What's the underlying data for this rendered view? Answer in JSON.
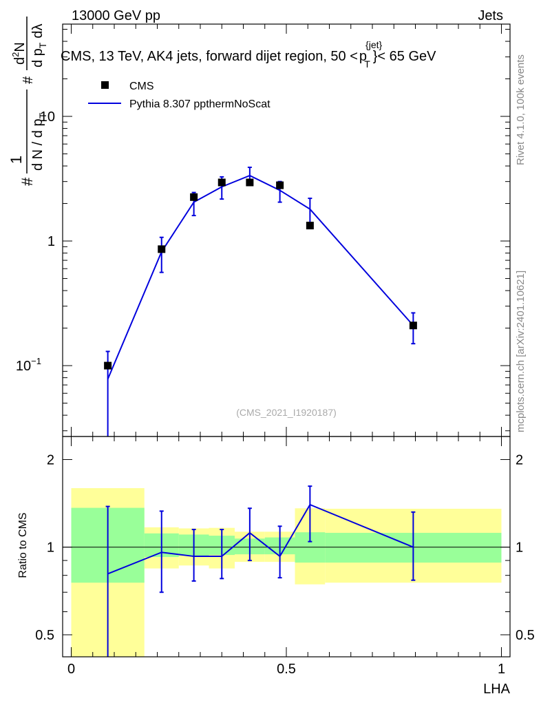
{
  "header": {
    "left": "13000 GeV pp",
    "right": "Jets"
  },
  "side": {
    "rivet": "Rivet 4.1.0,  100k events",
    "mcplots": "mcplots.cern.ch [arXiv:2401.10621]"
  },
  "watermark": "(CMS_2021_I1920187)",
  "colors": {
    "mc": "#0000dd",
    "data": "#000000",
    "band_inner": "#99ff99",
    "band_outer": "#ffff99"
  },
  "chart_data": [
    {
      "type": "line",
      "panel": "main",
      "title": "CMS, 13 TeV, AK4 jets, forward dijet region, 50 <",
      "title_sym_p": "p",
      "title_sup": "{jet}",
      "title_sub": "T",
      "title_tail": "}< 65 GeV",
      "ylabel": {
        "hash": "#",
        "one": "1",
        "dN": "d N / d p",
        "dN_sub": "T",
        "d2N": "d",
        "d2N_sup": "2",
        "d2N_tail": "N",
        "dpT": "d p",
        "dpT_sub": "T",
        "dlambda": "dλ"
      },
      "yscale": "log",
      "ylim": [
        0.027,
        55
      ],
      "xlim": [
        -0.02,
        1.02
      ],
      "yticks": [
        {
          "value": 10,
          "label": "10"
        },
        {
          "value": 1,
          "label": "1"
        },
        {
          "value": 0.1,
          "label": "10",
          "sup": "−1"
        }
      ],
      "legend": [
        {
          "label": "CMS",
          "kind": "marker"
        },
        {
          "label": "Pythia 8.307 ppthermNoScat",
          "kind": "line"
        }
      ],
      "series": [
        {
          "name": "CMS",
          "x": [
            0.085,
            0.21,
            0.285,
            0.35,
            0.415,
            0.485,
            0.555,
            0.795
          ],
          "values": [
            0.1,
            0.86,
            2.25,
            2.95,
            2.95,
            2.8,
            1.33,
            0.21
          ]
        },
        {
          "name": "Pythia 8.307 ppthermNoScat",
          "x": [
            0.085,
            0.21,
            0.285,
            0.35,
            0.415,
            0.485,
            0.555,
            0.795
          ],
          "values": [
            0.078,
            0.82,
            2.05,
            2.72,
            3.35,
            2.55,
            1.8,
            0.21
          ],
          "err_low": [
            0.02,
            0.56,
            1.6,
            2.17,
            2.85,
            2.05,
            1.35,
            0.15
          ],
          "err_high": [
            0.13,
            1.07,
            2.45,
            3.27,
            3.9,
            3.0,
            2.2,
            0.265
          ]
        }
      ]
    },
    {
      "type": "line",
      "panel": "ratio",
      "ylabel": "Ratio to CMS",
      "xlabel": "LHA",
      "yscale": "log",
      "ylim": [
        0.42,
        2.4
      ],
      "xlim": [
        -0.02,
        1.02
      ],
      "yticks": [
        {
          "value": 2,
          "label": "2"
        },
        {
          "value": 1,
          "label": "1"
        },
        {
          "value": 0.5,
          "label": "0.5"
        }
      ],
      "xticks": [
        {
          "value": 0,
          "label": "0"
        },
        {
          "value": 0.5,
          "label": "0.5"
        },
        {
          "value": 1,
          "label": "1"
        }
      ],
      "bins": [
        {
          "lo": 0.0,
          "hi": 0.17,
          "inner": [
            0.755,
            1.365
          ],
          "outer": [
            0.385,
            1.595
          ]
        },
        {
          "lo": 0.17,
          "hi": 0.25,
          "inner": [
            0.925,
            1.115
          ],
          "outer": [
            0.845,
            1.17
          ]
        },
        {
          "lo": 0.25,
          "hi": 0.32,
          "inner": [
            0.935,
            1.105
          ],
          "outer": [
            0.865,
            1.16
          ]
        },
        {
          "lo": 0.32,
          "hi": 0.38,
          "inner": [
            0.94,
            1.095
          ],
          "outer": [
            0.845,
            1.165
          ]
        },
        {
          "lo": 0.38,
          "hi": 0.45,
          "inner": [
            0.945,
            1.07
          ],
          "outer": [
            0.89,
            1.13
          ]
        },
        {
          "lo": 0.45,
          "hi": 0.52,
          "inner": [
            0.945,
            1.08
          ],
          "outer": [
            0.89,
            1.13
          ]
        },
        {
          "lo": 0.52,
          "hi": 0.59,
          "inner": [
            0.885,
            1.125
          ],
          "outer": [
            0.745,
            1.36
          ]
        },
        {
          "lo": 0.59,
          "hi": 1.0,
          "inner": [
            0.885,
            1.12
          ],
          "outer": [
            0.755,
            1.355
          ]
        }
      ],
      "series": [
        {
          "name": "Pythia 8.307 ppthermNoScat / CMS",
          "x": [
            0.085,
            0.21,
            0.285,
            0.35,
            0.415,
            0.485,
            0.555,
            0.795
          ],
          "values": [
            0.81,
            0.96,
            0.93,
            0.93,
            1.12,
            0.93,
            1.4,
            1.0
          ],
          "err_low": [
            0.4,
            0.7,
            0.765,
            0.78,
            0.9,
            0.785,
            1.045,
            0.77
          ],
          "err_high": [
            1.38,
            1.33,
            1.15,
            1.15,
            1.36,
            1.18,
            1.62,
            1.32
          ]
        }
      ]
    }
  ]
}
